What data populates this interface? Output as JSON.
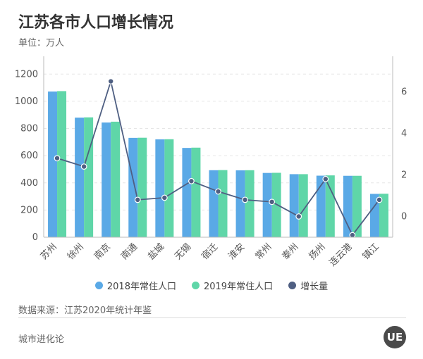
{
  "title": "江苏各市人口增长情况",
  "subtitle": "单位：万人",
  "source": "数据来源：江苏2020年统计年鉴",
  "brand": "城市进化论",
  "chart_data": {
    "type": "bar",
    "categories": [
      "苏州",
      "徐州",
      "南京",
      "南通",
      "盐城",
      "无锡",
      "宿迁",
      "淮安",
      "常州",
      "泰州",
      "扬州",
      "连云港",
      "镇江"
    ],
    "series": [
      {
        "name": "2018年常住人口",
        "type": "bar",
        "axis": "left",
        "color": "#5aa9e6",
        "values": [
          1072,
          880,
          844,
          731,
          720,
          657,
          493,
          492,
          473,
          464,
          453,
          452,
          319
        ]
      },
      {
        "name": "2019年常住人口",
        "type": "bar",
        "axis": "left",
        "color": "#5fd6a8",
        "values": [
          1075,
          882,
          850,
          732,
          721,
          659,
          494,
          493,
          474,
          464,
          455,
          452,
          320
        ]
      },
      {
        "name": "增长量",
        "type": "line",
        "axis": "right",
        "color": "#4f5f82",
        "values": [
          2.8,
          2.4,
          6.5,
          0.8,
          0.9,
          1.7,
          1.2,
          0.8,
          0.7,
          0.0,
          1.8,
          -0.9,
          0.8
        ]
      }
    ],
    "ylim": [
      0,
      1300
    ],
    "yticks": [
      0,
      200,
      400,
      600,
      800,
      1000,
      1200
    ],
    "y2lim": [
      -1,
      7.5
    ],
    "y2ticks": [
      0,
      2,
      4,
      6
    ],
    "grid": true,
    "legend_position": "bottom"
  }
}
